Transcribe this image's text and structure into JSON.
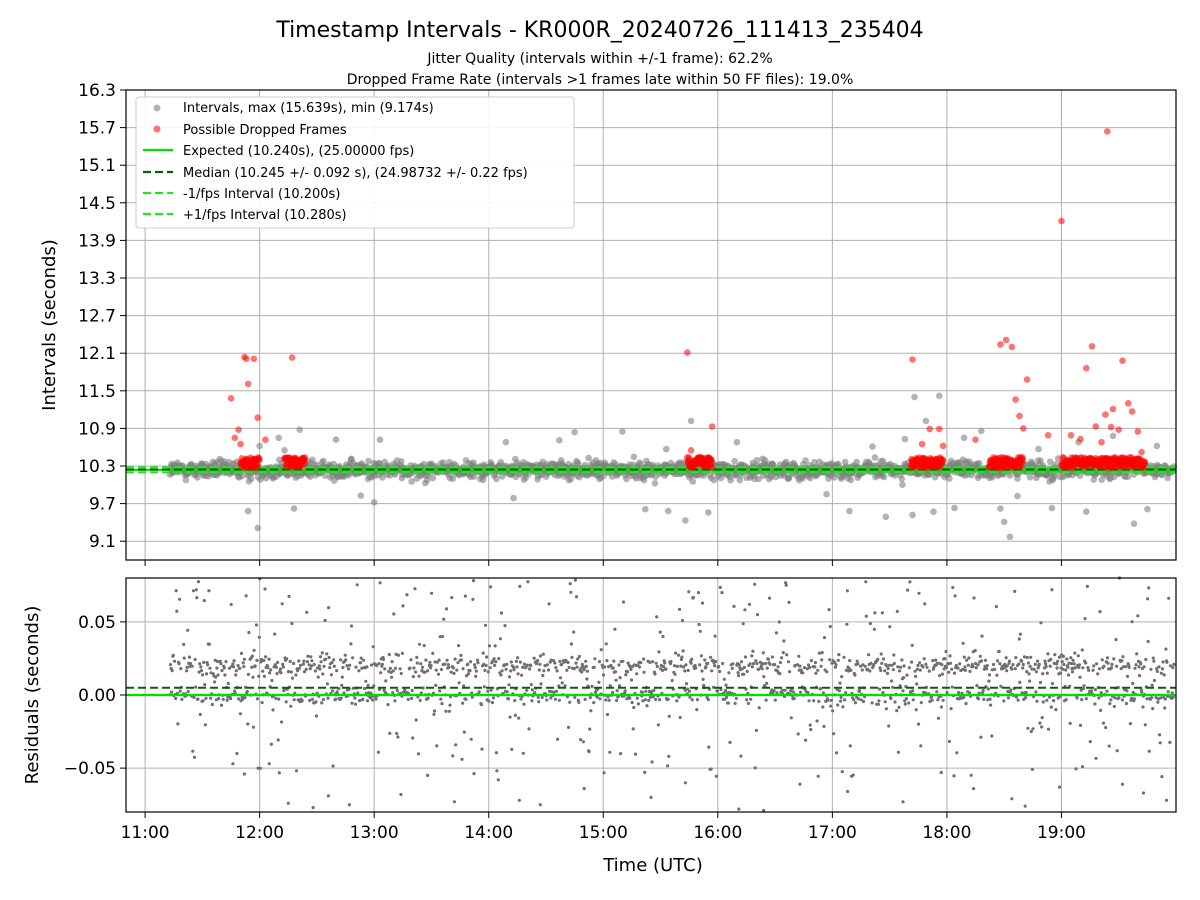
{
  "chart_data": [
    {
      "type": "scatter",
      "title": "Timestamp Intervals - KR000R_20240726_111413_235404",
      "subtitle_lines": [
        "Jitter Quality (intervals within +/-1 frame): 62.2%",
        "Dropped Frame Rate (intervals >1 frames late within 50 FF files): 19.0%"
      ],
      "xlabel": "",
      "ylabel": "Intervals (seconds)",
      "x_axis": "time-of-day UTC",
      "xlim": [
        "10:50",
        "20:00"
      ],
      "ylim": [
        8.8,
        16.3
      ],
      "yticks": [
        "9.1",
        "9.7",
        "10.3",
        "10.9",
        "11.5",
        "12.1",
        "12.7",
        "13.3",
        "13.9",
        "14.5",
        "15.1",
        "15.7",
        "16.3"
      ],
      "grid": true,
      "legend_placement": "top-left",
      "legend": [
        "Intervals, max (15.639s), min (9.174s)",
        "Possible Dropped Frames",
        "Expected (10.240s), (25.00000 fps)",
        "Median (10.245 +/- 0.092 s), (24.98732 +/- 0.22 fps)",
        "-1/fps Interval (10.200s)",
        "+1/fps Interval (10.280s)"
      ],
      "reference_lines": {
        "expected": 10.24,
        "median": 10.245,
        "minus_one_fps": 10.2,
        "plus_one_fps": 10.28
      },
      "series": [
        {
          "name": "Intervals, max (15.639s), min (9.174s)",
          "color": "#808080",
          "cloud": {
            "start": "11:13",
            "end": "19:59",
            "center": 10.24,
            "spread": 0.12
          },
          "points": [
            [
              "11:54",
              9.58
            ],
            [
              "11:59",
              9.31
            ],
            [
              "12:00",
              10.62
            ],
            [
              "12:10",
              10.75
            ],
            [
              "12:13",
              10.55
            ],
            [
              "12:18",
              9.62
            ],
            [
              "12:21",
              10.88
            ],
            [
              "12:40",
              10.72
            ],
            [
              "12:53",
              9.83
            ],
            [
              "13:00",
              9.72
            ],
            [
              "13:03",
              10.72
            ],
            [
              "14:09",
              10.68
            ],
            [
              "14:13",
              9.79
            ],
            [
              "14:37",
              10.71
            ],
            [
              "14:45",
              10.84
            ],
            [
              "15:10",
              10.85
            ],
            [
              "15:22",
              9.61
            ],
            [
              "15:33",
              10.57
            ],
            [
              "15:34",
              9.58
            ],
            [
              "15:43",
              9.43
            ],
            [
              "15:46",
              11.02
            ],
            [
              "15:55",
              9.56
            ],
            [
              "16:10",
              10.68
            ],
            [
              "16:57",
              9.85
            ],
            [
              "17:09",
              9.58
            ],
            [
              "17:21",
              10.61
            ],
            [
              "17:28",
              9.49
            ],
            [
              "17:38",
              10.73
            ],
            [
              "17:42",
              9.52
            ],
            [
              "17:43",
              11.4
            ],
            [
              "17:49",
              11.02
            ],
            [
              "17:53",
              9.57
            ],
            [
              "17:56",
              11.42
            ],
            [
              "18:04",
              9.63
            ],
            [
              "18:09",
              10.75
            ],
            [
              "18:18",
              10.86
            ],
            [
              "18:28",
              9.62
            ],
            [
              "18:30",
              9.41
            ],
            [
              "18:33",
              9.17
            ],
            [
              "18:37",
              9.82
            ],
            [
              "18:48",
              10.57
            ],
            [
              "18:55",
              9.63
            ],
            [
              "19:09",
              10.68
            ],
            [
              "19:13",
              9.57
            ],
            [
              "19:27",
              10.78
            ],
            [
              "19:38",
              9.38
            ],
            [
              "19:45",
              9.61
            ],
            [
              "19:50",
              10.62
            ]
          ]
        },
        {
          "name": "Possible Dropped Frames",
          "color": "#ff0000",
          "clusters": [
            {
              "start": "11:50",
              "end": "12:00"
            },
            {
              "start": "12:13",
              "end": "12:24"
            },
            {
              "start": "15:44",
              "end": "15:57"
            },
            {
              "start": "17:41",
              "end": "17:58"
            },
            {
              "start": "18:22",
              "end": "18:40"
            },
            {
              "start": "19:00",
              "end": "19:44"
            }
          ],
          "points": [
            [
              "11:45",
              11.38
            ],
            [
              "11:47",
              10.75
            ],
            [
              "11:49",
              10.88
            ],
            [
              "11:50",
              10.65
            ],
            [
              "11:52",
              12.04
            ],
            [
              "11:53",
              12.01
            ],
            [
              "11:54",
              11.61
            ],
            [
              "11:57",
              12.01
            ],
            [
              "11:59",
              11.07
            ],
            [
              "12:03",
              10.72
            ],
            [
              "12:17",
              12.03
            ],
            [
              "15:44",
              12.11
            ],
            [
              "15:46",
              10.55
            ],
            [
              "15:57",
              10.93
            ],
            [
              "17:42",
              12.0
            ],
            [
              "17:47",
              10.65
            ],
            [
              "17:51",
              10.89
            ],
            [
              "17:56",
              10.89
            ],
            [
              "17:58",
              10.62
            ],
            [
              "18:15",
              10.72
            ],
            [
              "18:28",
              12.24
            ],
            [
              "18:31",
              12.31
            ],
            [
              "18:34",
              12.2
            ],
            [
              "18:36",
              11.36
            ],
            [
              "18:38",
              11.1
            ],
            [
              "18:40",
              10.9
            ],
            [
              "18:42",
              11.68
            ],
            [
              "18:53",
              10.79
            ],
            [
              "19:00",
              14.21
            ],
            [
              "19:05",
              10.79
            ],
            [
              "19:10",
              10.73
            ],
            [
              "19:13",
              11.86
            ],
            [
              "19:16",
              12.21
            ],
            [
              "19:18",
              10.93
            ],
            [
              "19:21",
              10.68
            ],
            [
              "19:23",
              11.12
            ],
            [
              "19:24",
              15.64
            ],
            [
              "19:26",
              10.92
            ],
            [
              "19:27",
              11.21
            ],
            [
              "19:30",
              10.88
            ],
            [
              "19:32",
              11.98
            ],
            [
              "19:35",
              11.3
            ],
            [
              "19:37",
              11.17
            ],
            [
              "19:40",
              10.85
            ],
            [
              "19:42",
              10.52
            ]
          ]
        },
        {
          "name": "Expected (10.240s), (25.00000 fps)",
          "color": "#00e000",
          "y": 10.24
        },
        {
          "name": "Median (10.245 +/- 0.092 s), (24.98732 +/- 0.22 fps)",
          "color": "#006400",
          "y": 10.245
        },
        {
          "name": "-1/fps Interval (10.200s)",
          "color": "#22e622",
          "y": 10.2
        },
        {
          "name": "+1/fps Interval (10.280s)",
          "color": "#22e622",
          "y": 10.28
        }
      ]
    },
    {
      "type": "scatter",
      "xlabel": "Time (UTC)",
      "ylabel": "Residuals (seconds)",
      "xlim": [
        "10:50",
        "20:00"
      ],
      "ylim": [
        -0.08,
        0.08
      ],
      "xticks": [
        "11:00",
        "12:00",
        "13:00",
        "14:00",
        "15:00",
        "16:00",
        "17:00",
        "18:00",
        "19:00"
      ],
      "yticks": [
        "0.05",
        "0.00",
        "−0.05"
      ],
      "grid": true,
      "reference_lines": {
        "expected": 0.0,
        "median": 0.005
      },
      "series": [
        {
          "color": "#808080",
          "cloud": {
            "start": "11:13",
            "end": "19:59",
            "bands": [
              0.02,
              0.0
            ],
            "spread": 0.03
          },
          "description_points": [
            [
              "11:46",
              -0.047
            ],
            [
              "11:52",
              -0.054
            ],
            [
              "12:05",
              -0.047
            ],
            [
              "12:15",
              -0.074
            ],
            [
              "12:28",
              -0.077
            ],
            [
              "12:36",
              -0.069
            ],
            [
              "12:47",
              -0.075
            ],
            [
              "13:14",
              -0.068
            ],
            [
              "13:28",
              -0.055
            ],
            [
              "13:42",
              -0.073
            ],
            [
              "14:05",
              -0.058
            ],
            [
              "14:16",
              -0.072
            ],
            [
              "14:27",
              -0.075
            ],
            [
              "14:50",
              -0.064
            ],
            [
              "15:25",
              -0.07
            ],
            [
              "15:43",
              -0.06
            ],
            [
              "16:11",
              -0.078
            ],
            [
              "16:24",
              -0.079
            ],
            [
              "16:43",
              -0.061
            ],
            [
              "17:08",
              -0.066
            ],
            [
              "17:37",
              -0.073
            ],
            [
              "17:57",
              -0.053
            ],
            [
              "18:14",
              -0.064
            ],
            [
              "18:34",
              -0.071
            ],
            [
              "18:41",
              -0.076
            ],
            [
              "18:59",
              -0.063
            ],
            [
              "19:11",
              -0.049
            ],
            [
              "19:32",
              -0.061
            ],
            [
              "19:43",
              -0.067
            ],
            [
              "19:55",
              -0.072
            ]
          ]
        }
      ]
    }
  ]
}
